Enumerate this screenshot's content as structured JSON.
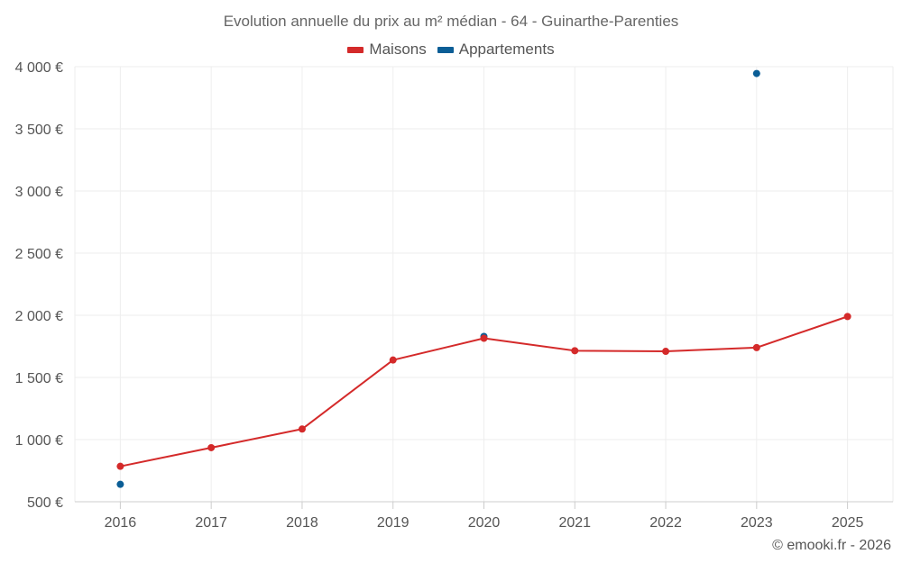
{
  "chart_data": {
    "type": "line",
    "title": "Evolution annuelle du prix au m² médian - 64 - Guinarthe-Parenties",
    "categories": [
      "2016",
      "2017",
      "2018",
      "2019",
      "2020",
      "2021",
      "2022",
      "2023",
      "2025"
    ],
    "series": [
      {
        "name": "Maisons",
        "color": "#d42a2a",
        "values": [
          785,
          935,
          1085,
          1640,
          1815,
          1715,
          1710,
          1740,
          1990
        ]
      },
      {
        "name": "Appartements",
        "color": "#0b5e96",
        "values": [
          640,
          null,
          null,
          null,
          1830,
          null,
          null,
          3945,
          null
        ]
      }
    ],
    "ylim": [
      500,
      4000
    ],
    "yticks": [
      500,
      1000,
      1500,
      2000,
      2500,
      3000,
      3500,
      4000
    ],
    "ytick_labels": [
      "500 €",
      "1 000 €",
      "1 500 €",
      "2 000 €",
      "2 500 €",
      "3 000 €",
      "3 500 €",
      "4 000 €"
    ],
    "xlabel": "",
    "ylabel": "",
    "grid": true,
    "legend_position": "top-center"
  },
  "credit": "© emooki.fr - 2026"
}
